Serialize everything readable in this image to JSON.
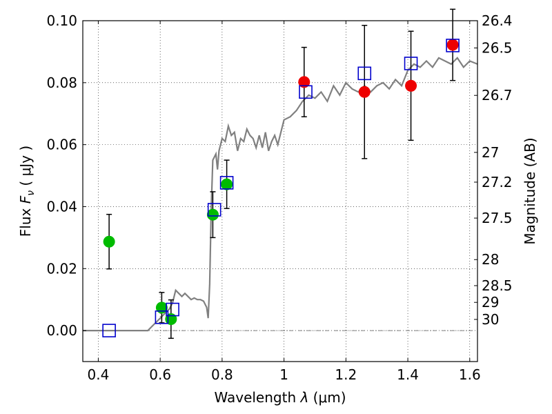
{
  "chart_data": {
    "type": "scatter",
    "xlabel_prefix": "Wavelength  ",
    "xlabel_sym": "λ",
    "xlabel_unit": " (μm)",
    "ylabel_prefix": "Flux  ",
    "ylabel_sym": "F",
    "ylabel_sub": "ν",
    "ylabel_unit": "  ( μJy )",
    "y2label": "Magnitude (AB)",
    "xlim": [
      0.35,
      1.625
    ],
    "ylim": [
      -0.01,
      0.1
    ],
    "grid": true,
    "x_ticks": [
      0.4,
      0.6,
      0.8,
      1.0,
      1.2,
      1.4,
      1.6
    ],
    "x_tick_labels": [
      "0.4",
      "0.6",
      "0.8",
      "1",
      "1.2",
      "1.4",
      "1.6"
    ],
    "y_ticks": [
      0.0,
      0.02,
      0.04,
      0.06,
      0.08,
      0.1
    ],
    "y_tick_labels": [
      "0.00",
      "0.02",
      "0.04",
      "0.06",
      "0.08",
      "0.10"
    ],
    "y2_ticks": [
      {
        "label": "26.4",
        "flux": 0.1
      },
      {
        "label": "26.5",
        "flux": 0.0912
      },
      {
        "label": "26.7",
        "flux": 0.0759
      },
      {
        "label": "27",
        "flux": 0.0575
      },
      {
        "label": "27.2",
        "flux": 0.0479
      },
      {
        "label": "27.5",
        "flux": 0.0363
      },
      {
        "label": "28",
        "flux": 0.0229
      },
      {
        "label": "28.5",
        "flux": 0.0145
      },
      {
        "label": "29",
        "flux": 0.0091
      },
      {
        "label": "30",
        "flux": 0.0036
      }
    ],
    "series": [
      {
        "kind": "model_spectrum",
        "color": "#808080",
        "x": [
          0.35,
          0.56,
          0.575,
          0.59,
          0.6,
          0.61,
          0.62,
          0.625,
          0.63,
          0.64,
          0.65,
          0.66,
          0.67,
          0.68,
          0.69,
          0.7,
          0.71,
          0.72,
          0.73,
          0.74,
          0.75,
          0.755,
          0.76,
          0.762,
          0.765,
          0.77,
          0.78,
          0.785,
          0.79,
          0.8,
          0.81,
          0.82,
          0.83,
          0.84,
          0.85,
          0.86,
          0.87,
          0.88,
          0.89,
          0.9,
          0.91,
          0.92,
          0.93,
          0.94,
          0.95,
          0.96,
          0.97,
          0.98,
          0.99,
          1.0,
          1.02,
          1.04,
          1.06,
          1.08,
          1.1,
          1.12,
          1.14,
          1.16,
          1.18,
          1.2,
          1.22,
          1.24,
          1.26,
          1.28,
          1.3,
          1.32,
          1.34,
          1.36,
          1.38,
          1.4,
          1.42,
          1.44,
          1.46,
          1.48,
          1.5,
          1.52,
          1.54,
          1.56,
          1.58,
          1.6,
          1.625
        ],
        "y": [
          0.0,
          0.0,
          0.0015,
          0.003,
          0.004,
          0.005,
          0.006,
          0.0065,
          0.007,
          0.009,
          0.013,
          0.012,
          0.011,
          0.012,
          0.011,
          0.01,
          0.0105,
          0.01,
          0.01,
          0.0095,
          0.0075,
          0.004,
          0.015,
          0.025,
          0.04,
          0.055,
          0.057,
          0.052,
          0.058,
          0.062,
          0.061,
          0.066,
          0.063,
          0.064,
          0.058,
          0.062,
          0.061,
          0.065,
          0.063,
          0.062,
          0.059,
          0.063,
          0.059,
          0.064,
          0.058,
          0.061,
          0.063,
          0.06,
          0.064,
          0.068,
          0.069,
          0.071,
          0.074,
          0.076,
          0.075,
          0.077,
          0.074,
          0.079,
          0.076,
          0.08,
          0.078,
          0.077,
          0.079,
          0.077,
          0.079,
          0.08,
          0.078,
          0.081,
          0.079,
          0.084,
          0.086,
          0.085,
          0.087,
          0.085,
          0.088,
          0.087,
          0.086,
          0.088,
          0.085,
          0.087,
          0.086
        ]
      },
      {
        "kind": "model_points",
        "marker": "open-square",
        "color": "#0000cc",
        "x": [
          0.435,
          0.605,
          0.64,
          0.775,
          0.815,
          1.07,
          1.26,
          1.41,
          1.545
        ],
        "y": [
          0.0,
          0.0043,
          0.0068,
          0.039,
          0.0477,
          0.077,
          0.083,
          0.0862,
          0.092
        ]
      },
      {
        "kind": "observed",
        "marker": "filled-circle",
        "color": "#00bb00",
        "x": [
          0.435,
          0.605,
          0.635,
          0.77,
          0.815
        ],
        "y": [
          0.0287,
          0.0074,
          0.0037,
          0.0374,
          0.0472
        ],
        "err": [
          0.0088,
          0.0049,
          0.0062,
          0.0074,
          0.0078
        ]
      },
      {
        "kind": "observed",
        "marker": "filled-circle",
        "color": "#ee0000",
        "x": [
          1.065,
          1.26,
          1.41,
          1.545
        ],
        "y": [
          0.0802,
          0.077,
          0.079,
          0.0922
        ],
        "err": [
          0.0112,
          0.0215,
          0.0176,
          0.0115
        ]
      }
    ]
  }
}
